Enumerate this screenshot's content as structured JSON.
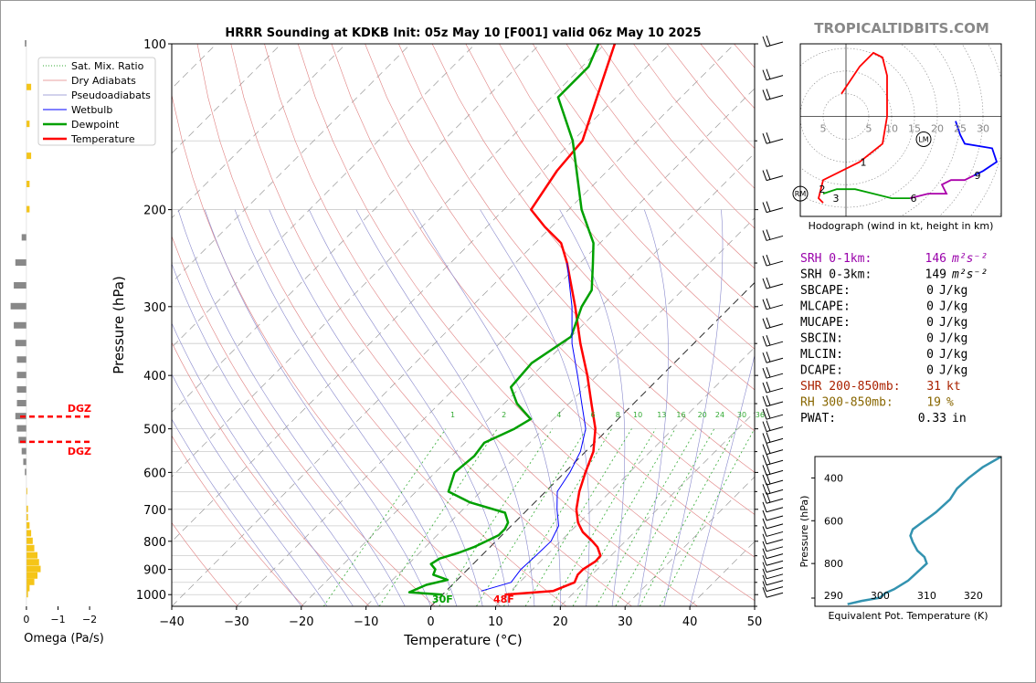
{
  "brand": "TROPICALTIDBITS.COM",
  "title": "HRRR Sounding at KDKB Init: 05z May 10 [F001] valid 06z May 10 2025",
  "chart_data": [
    {
      "type": "line",
      "name": "skew-t",
      "xlabel": "Temperature (°C)",
      "ylabel": "Pressure (hPa)",
      "xlim": [
        -40,
        50
      ],
      "ylim": [
        1050,
        100
      ],
      "y_scale": "log",
      "x_ticks": [
        "−40",
        "−30",
        "−20",
        "−10",
        "0",
        "10",
        "20",
        "30",
        "40",
        "50"
      ],
      "y_ticks": [
        {
          "p": 100,
          "label": "100"
        },
        {
          "p": 200,
          "label": "200"
        },
        {
          "p": 300,
          "label": "300"
        },
        {
          "p": 400,
          "label": "400"
        },
        {
          "p": 500,
          "label": "500"
        },
        {
          "p": 600,
          "label": "600"
        },
        {
          "p": 700,
          "label": "700"
        },
        {
          "p": 800,
          "label": "800"
        },
        {
          "p": 900,
          "label": "900"
        },
        {
          "p": 1000,
          "label": "1000"
        }
      ],
      "legend": [
        "Sat. Mix. Ratio",
        "Dry Adiabats",
        "Pseudoadiabats",
        "Wetbulb",
        "Dewpoint",
        "Temperature"
      ],
      "legend_placement": "top-left",
      "mixing_ratio_labels": [
        "1",
        "2",
        "4",
        "6",
        "8",
        "10",
        "13",
        "16",
        "20",
        "24",
        "30",
        "36"
      ],
      "surface_labels": {
        "dewpoint": "30F",
        "temperature": "48F"
      },
      "series": [
        {
          "name": "Temperature",
          "color": "#ff0000",
          "points": [
            [
              1000,
              9.6
            ],
            [
              985,
              16.5
            ],
            [
              950,
              18.5
            ],
            [
              920,
              17.8
            ],
            [
              900,
              17.8
            ],
            [
              870,
              18.5
            ],
            [
              850,
              18.4
            ],
            [
              820,
              16.6
            ],
            [
              800,
              14.9
            ],
            [
              770,
              12
            ],
            [
              740,
              9.8
            ],
            [
              700,
              7.5
            ],
            [
              650,
              5.2
            ],
            [
              600,
              3.2
            ],
            [
              550,
              1.2
            ],
            [
              500,
              -2
            ],
            [
              450,
              -6.5
            ],
            [
              400,
              -11.5
            ],
            [
              350,
              -17.5
            ],
            [
              300,
              -24
            ],
            [
              250,
              -32
            ],
            [
              230,
              -36
            ],
            [
              215,
              -41
            ],
            [
              200,
              -45.8
            ],
            [
              170,
              -47.8
            ],
            [
              150,
              -48.5
            ],
            [
              125,
              -53
            ],
            [
              100,
              -58.5
            ]
          ]
        },
        {
          "name": "Dewpoint",
          "color": "#00a000",
          "points": [
            [
              1000,
              0
            ],
            [
              990,
              -5.5
            ],
            [
              960,
              -4
            ],
            [
              940,
              -1.5
            ],
            [
              920,
              -4.5
            ],
            [
              900,
              -5
            ],
            [
              880,
              -6.5
            ],
            [
              860,
              -6
            ],
            [
              840,
              -4
            ],
            [
              820,
              -2.5
            ],
            [
              800,
              -1.5
            ],
            [
              780,
              -0.5
            ],
            [
              760,
              -0.5
            ],
            [
              740,
              -1
            ],
            [
              710,
              -3
            ],
            [
              680,
              -10
            ],
            [
              650,
              -15
            ],
            [
              600,
              -17
            ],
            [
              560,
              -16.5
            ],
            [
              530,
              -17
            ],
            [
              500,
              -14.5
            ],
            [
              480,
              -13.5
            ],
            [
              450,
              -18
            ],
            [
              420,
              -21.5
            ],
            [
              380,
              -22
            ],
            [
              340,
              -20
            ],
            [
              300,
              -23
            ],
            [
              280,
              -24
            ],
            [
              250,
              -28
            ],
            [
              230,
              -31
            ],
            [
              200,
              -38
            ],
            [
              150,
              -50
            ],
            [
              125,
              -59
            ],
            [
              110,
              -59
            ],
            [
              100,
              -61
            ]
          ]
        },
        {
          "name": "Wetbulb",
          "color": "#0000ff",
          "points": [
            [
              985,
              5.4
            ],
            [
              950,
              8.7
            ],
            [
              900,
              8.2
            ],
            [
              850,
              8.4
            ],
            [
              800,
              8.5
            ],
            [
              750,
              7.3
            ],
            [
              700,
              4.5
            ],
            [
              650,
              1.8
            ],
            [
              600,
              0.8
            ],
            [
              550,
              -0.8
            ],
            [
              500,
              -3.5
            ],
            [
              450,
              -8
            ],
            [
              400,
              -13
            ],
            [
              350,
              -18.8
            ],
            [
              300,
              -24.5
            ],
            [
              250,
              -32
            ]
          ]
        }
      ]
    },
    {
      "type": "bar",
      "name": "omega",
      "xlabel": "Omega (Pa/s)",
      "xlim": [
        0.2,
        -2.2
      ],
      "x_ticks": [
        "0",
        "−1",
        "−2"
      ],
      "dgz_label": "DGZ",
      "dgz_levels": [
        475,
        528
      ],
      "bars": [
        [
          100,
          0.05
        ],
        [
          120,
          -0.15
        ],
        [
          140,
          -0.1
        ],
        [
          160,
          -0.15
        ],
        [
          180,
          -0.1
        ],
        [
          200,
          -0.1
        ],
        [
          225,
          0.15
        ],
        [
          250,
          0.35
        ],
        [
          275,
          0.4
        ],
        [
          300,
          0.5
        ],
        [
          325,
          0.4
        ],
        [
          350,
          0.35
        ],
        [
          375,
          0.3
        ],
        [
          400,
          0.3
        ],
        [
          425,
          0.3
        ],
        [
          450,
          0.3
        ],
        [
          475,
          0.35
        ],
        [
          500,
          0.3
        ],
        [
          525,
          0.25
        ],
        [
          550,
          0.15
        ],
        [
          575,
          0.1
        ],
        [
          600,
          0.05
        ],
        [
          650,
          -0.02
        ],
        [
          700,
          -0.05
        ],
        [
          725,
          -0.05
        ],
        [
          750,
          -0.1
        ],
        [
          775,
          -0.15
        ],
        [
          800,
          -0.2
        ],
        [
          825,
          -0.25
        ],
        [
          850,
          -0.35
        ],
        [
          875,
          -0.4
        ],
        [
          900,
          -0.45
        ],
        [
          925,
          -0.35
        ],
        [
          950,
          -0.25
        ],
        [
          975,
          -0.1
        ],
        [
          1000,
          -0.05
        ]
      ]
    },
    {
      "type": "line",
      "name": "hodograph",
      "xlabel": "Hodograph (wind in kt, height in km)",
      "xlim": [
        -10,
        34
      ],
      "ylim": [
        -22,
        16
      ],
      "x_ticks": [
        "5",
        "5",
        "10",
        "15",
        "20",
        "25",
        "30"
      ],
      "height_labels": [
        "1",
        "2",
        "3",
        "6",
        "9"
      ],
      "markers": [
        "RM",
        "LM"
      ],
      "segments": [
        {
          "layer": "0-3km",
          "color": "#ff0000",
          "points": [
            [
              -1,
              5
            ],
            [
              3,
              11
            ],
            [
              6,
              14
            ],
            [
              8,
              13
            ],
            [
              9,
              9
            ],
            [
              9,
              0
            ],
            [
              8,
              -6
            ],
            [
              3,
              -10
            ],
            [
              -5,
              -14
            ],
            [
              -6,
              -18
            ],
            [
              -5,
              -19
            ]
          ]
        },
        {
          "layer": "3-6km",
          "color": "#00a000",
          "points": [
            [
              -5,
              -17
            ],
            [
              -2,
              -16
            ],
            [
              2,
              -16
            ],
            [
              6,
              -17
            ],
            [
              10,
              -18
            ],
            [
              14,
              -18
            ]
          ]
        },
        {
          "layer": "6-9km",
          "color": "#aa00aa",
          "points": [
            [
              14,
              -18
            ],
            [
              18,
              -17
            ],
            [
              22,
              -17
            ],
            [
              21,
              -15
            ],
            [
              23,
              -14
            ],
            [
              26,
              -14
            ],
            [
              28,
              -13
            ]
          ]
        },
        {
          "layer": "9-12km",
          "color": "#0000ff",
          "points": [
            [
              28,
              -13
            ],
            [
              30,
              -12
            ],
            [
              33,
              -10
            ],
            [
              32,
              -7
            ],
            [
              26,
              -6
            ],
            [
              25,
              -4
            ],
            [
              24,
              -1
            ]
          ]
        }
      ]
    },
    {
      "type": "line",
      "name": "theta-e",
      "xlabel": "Equivalent Pot. Temperature (K)",
      "ylabel": "Pressure (hPa)",
      "xlim": [
        286,
        326
      ],
      "ylim": [
        1000,
        300
      ],
      "x_ticks": [
        "290",
        "300",
        "310",
        "320"
      ],
      "y_ticks": [
        "400",
        "600",
        "800"
      ],
      "series": [
        {
          "name": "theta-e",
          "color": "#3393b0",
          "points": [
            [
              990,
              293
            ],
            [
              975,
              296
            ],
            [
              960,
              300
            ],
            [
              940,
              301
            ],
            [
              920,
              303
            ],
            [
              880,
              306
            ],
            [
              850,
              307.5
            ],
            [
              820,
              309
            ],
            [
              800,
              310
            ],
            [
              770,
              309.5
            ],
            [
              740,
              308
            ],
            [
              700,
              307
            ],
            [
              670,
              306.5
            ],
            [
              640,
              307
            ],
            [
              600,
              309.5
            ],
            [
              560,
              312
            ],
            [
              500,
              315
            ],
            [
              450,
              316.5
            ],
            [
              400,
              319
            ],
            [
              350,
              322
            ],
            [
              300,
              326
            ]
          ]
        }
      ]
    }
  ],
  "indices": [
    {
      "label": "SRH 0-1km:",
      "value": "146",
      "unit": "m²s⁻²",
      "color": "#9900aa"
    },
    {
      "label": "SRH 0-3km:",
      "value": "149",
      "unit": "m²s⁻²",
      "color": "#000000"
    },
    {
      "label": "SBCAPE:",
      "value": "0",
      "unit": "J/kg",
      "color": "#000000"
    },
    {
      "label": "MLCAPE:",
      "value": "0",
      "unit": "J/kg",
      "color": "#000000"
    },
    {
      "label": "MUCAPE:",
      "value": "0",
      "unit": "J/kg",
      "color": "#000000"
    },
    {
      "label": "SBCIN:",
      "value": "0",
      "unit": "J/kg",
      "color": "#000000"
    },
    {
      "label": "MLCIN:",
      "value": "0",
      "unit": "J/kg",
      "color": "#000000"
    },
    {
      "label": "DCAPE:",
      "value": "0",
      "unit": "J/kg",
      "color": "#000000"
    },
    {
      "label": "SHR 200-850mb:",
      "value": "31",
      "unit": "kt",
      "color": "#aa2200"
    },
    {
      "label": "RH 300-850mb:",
      "value": "19",
      "unit": "%",
      "color": "#886600"
    },
    {
      "label": "PWAT:",
      "value": "0.33",
      "unit": "in",
      "color": "#000000"
    }
  ]
}
